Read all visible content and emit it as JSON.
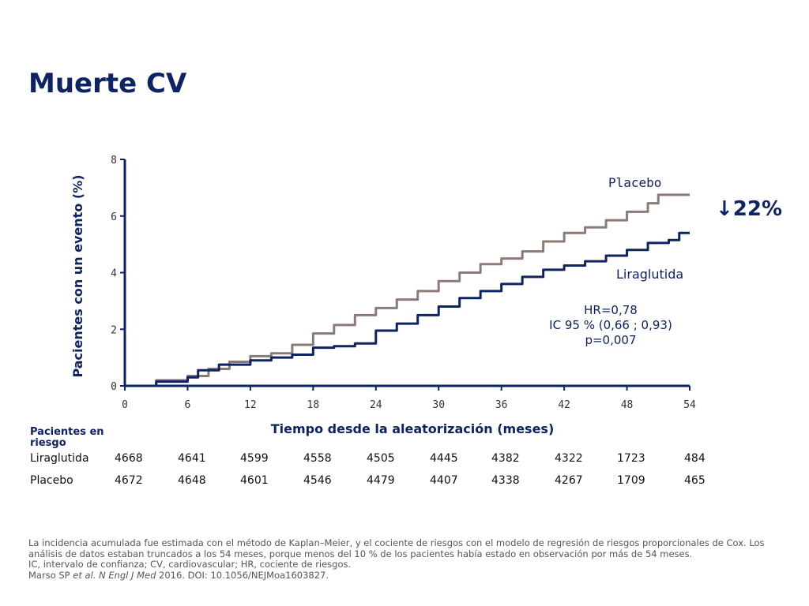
{
  "title": "Muerte CV",
  "reduction": {
    "arrow": "↓",
    "value": "22%"
  },
  "stats": {
    "hr": "HR=0,78",
    "ci": "IC 95 % (0,66 ; 0,93)",
    "p": "p=0,007"
  },
  "colors": {
    "placebo": "#8c7a76",
    "liraglutide": "#0d2364",
    "axis": "#0d2364",
    "title": "#0d2364"
  },
  "chart_data": {
    "type": "line",
    "title": "Muerte CV",
    "xlabel": "Tiempo desde la aleatorización (meses)",
    "ylabel": "Pacientes con un evento (%)",
    "xlim": [
      0,
      54
    ],
    "ylim": [
      0,
      8
    ],
    "x_ticks": [
      0,
      6,
      12,
      18,
      24,
      30,
      36,
      42,
      48,
      54
    ],
    "y_ticks": [
      0,
      2,
      4,
      6,
      8
    ],
    "grid": false,
    "series": [
      {
        "name": "Placebo",
        "x": [
          0,
          3,
          6,
          8,
          10,
          12,
          14,
          16,
          18,
          20,
          22,
          24,
          26,
          28,
          30,
          32,
          34,
          36,
          38,
          40,
          42,
          44,
          46,
          48,
          50,
          51,
          54
        ],
        "y": [
          0,
          0.2,
          0.35,
          0.6,
          0.85,
          1.05,
          1.15,
          1.45,
          1.85,
          2.15,
          2.5,
          2.75,
          3.05,
          3.35,
          3.7,
          4.0,
          4.3,
          4.5,
          4.75,
          5.1,
          5.4,
          5.6,
          5.85,
          6.15,
          6.45,
          6.75,
          6.75
        ]
      },
      {
        "name": "Liraglutida",
        "x": [
          0,
          3,
          6,
          7,
          9,
          12,
          14,
          16,
          18,
          20,
          22,
          24,
          26,
          28,
          30,
          32,
          34,
          36,
          38,
          40,
          42,
          44,
          46,
          48,
          50,
          52,
          53,
          54
        ],
        "y": [
          0,
          0.15,
          0.3,
          0.55,
          0.75,
          0.9,
          1.0,
          1.1,
          1.35,
          1.4,
          1.5,
          1.95,
          2.2,
          2.5,
          2.8,
          3.1,
          3.35,
          3.6,
          3.85,
          4.1,
          4.25,
          4.4,
          4.6,
          4.8,
          5.05,
          5.15,
          5.4,
          5.4
        ]
      }
    ],
    "annotations": [
      "Placebo",
      "Liraglutida"
    ]
  },
  "risk_table": {
    "title": "Pacientes en riesgo",
    "rows": [
      {
        "label": "Liraglutida",
        "values": [
          "4668",
          "4641",
          "4599",
          "4558",
          "4505",
          "4445",
          "4382",
          "4322",
          "1723",
          "484"
        ]
      },
      {
        "label": "Placebo",
        "values": [
          "4672",
          "4648",
          "4601",
          "4546",
          "4479",
          "4407",
          "4338",
          "4267",
          "1709",
          "465"
        ]
      }
    ]
  },
  "footnote": {
    "line1": "La incidencia acumulada fue estimada con el método de Kaplan–Meier, y el cociente de riesgos con el modelo de regresión de riesgos proporcionales de Cox. Los análisis de datos estaban truncados a los 54 meses, porque menos del 10 % de los pacientes había estado en observación por más de 54 meses.",
    "line2": "IC, intervalo de confianza; CV, cardiovascular; HR, cociente de riesgos.",
    "ref_prefix": "Marso SP ",
    "ref_italic": "et al. N Engl J Med",
    "ref_suffix": " 2016. DOI: 10.1056/NEJMoa1603827."
  }
}
